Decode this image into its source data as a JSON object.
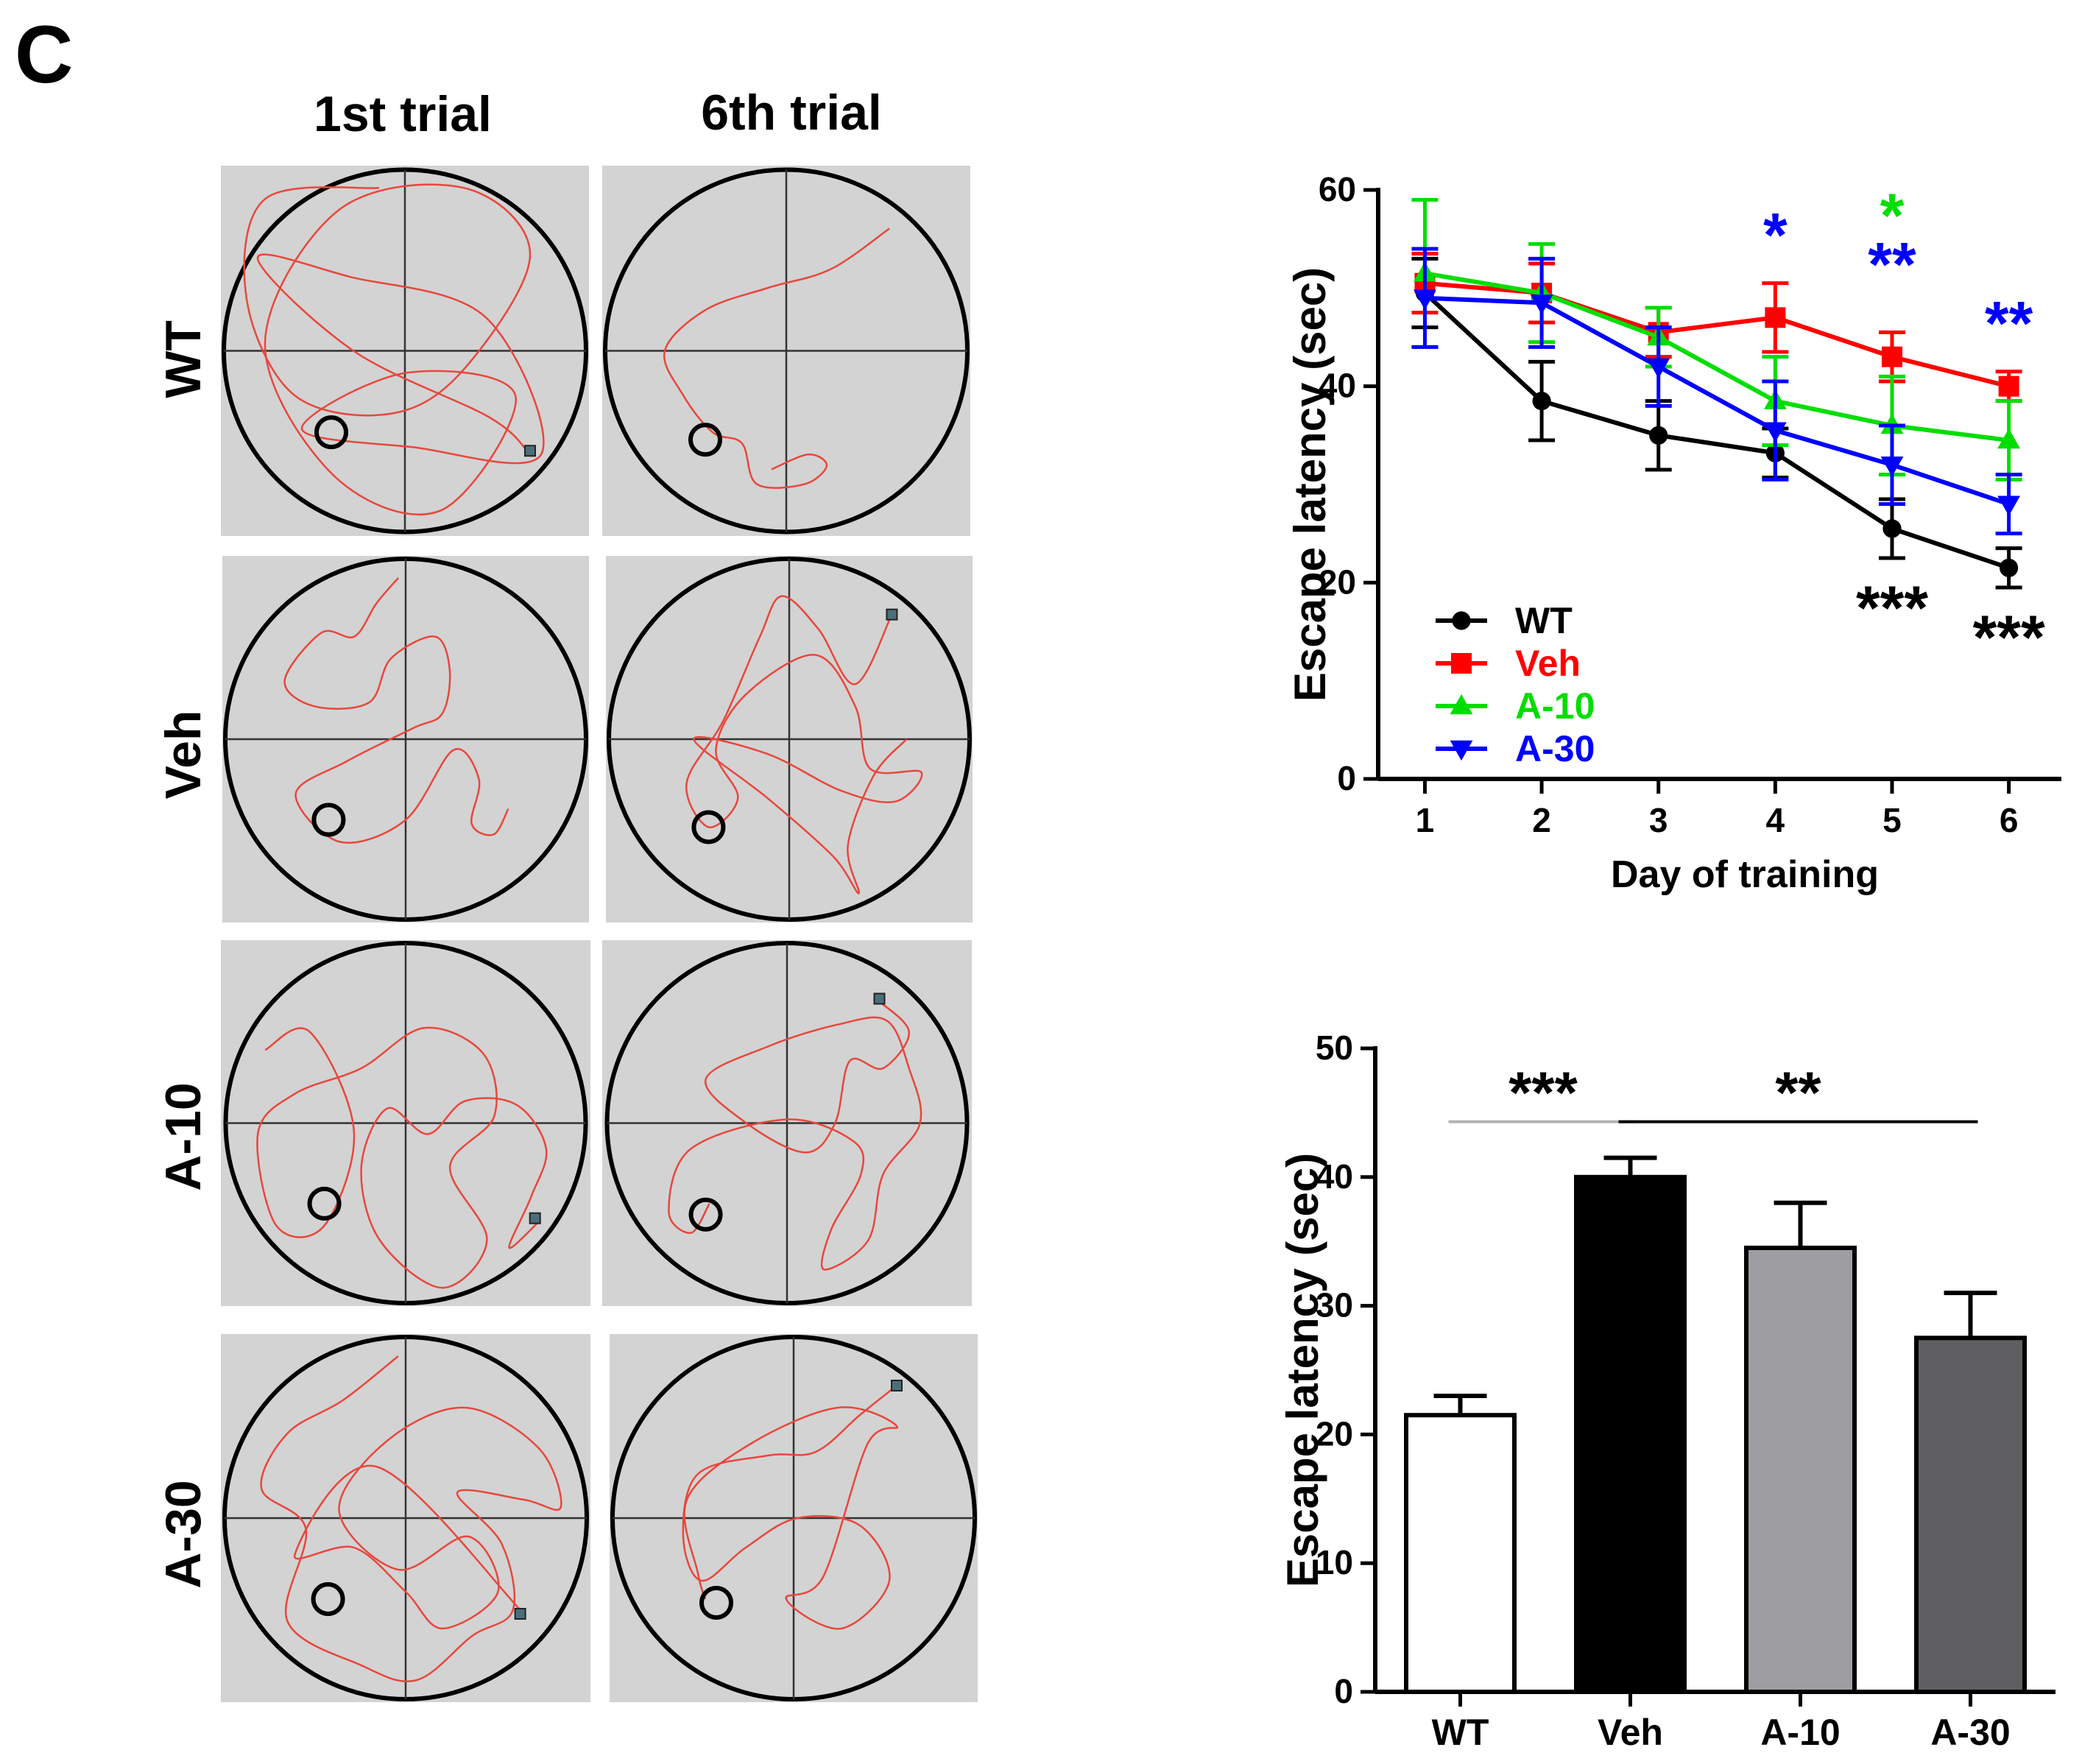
{
  "panel_label": "C",
  "trials": {
    "col_labels": [
      "1st trial",
      "6th trial"
    ],
    "row_labels": [
      "WT",
      "Veh",
      "A-10",
      "A-30"
    ],
    "colors": {
      "tank_bg": "#d3d3d3",
      "path": "#e8473d",
      "outline": "#000000",
      "marker": "#4a6f7a"
    }
  },
  "chart_data": [
    {
      "type": "line",
      "title": "",
      "xlabel": "Day of training",
      "ylabel": "Escape latency (sec)",
      "x": [
        1,
        2,
        3,
        4,
        5,
        6
      ],
      "xticks": [
        "1",
        "2",
        "3",
        "4",
        "5",
        "6"
      ],
      "yticks": [
        "0",
        "20",
        "40",
        "60"
      ],
      "ylim": [
        0,
        60
      ],
      "legend_position": "bottom-left",
      "series": [
        {
          "name": "WT",
          "color": "#000000",
          "marker": "circle",
          "values": [
            49.5,
            38.5,
            35,
            33.2,
            25.5,
            21.5
          ],
          "err": [
            3.5,
            4,
            3.5,
            2.5,
            3,
            2
          ]
        },
        {
          "name": "Veh",
          "color": "#ff0000",
          "marker": "square",
          "values": [
            50.5,
            49.5,
            45.5,
            47,
            43,
            40
          ],
          "err": [
            3,
            3,
            2.5,
            3.5,
            2.5,
            1.5
          ]
        },
        {
          "name": "A-10",
          "color": "#00dd00",
          "marker": "triangle-up",
          "values": [
            51.5,
            49.5,
            45,
            38.5,
            36,
            34.5
          ],
          "err": [
            7.5,
            5,
            3,
            4.5,
            5,
            4
          ]
        },
        {
          "name": "A-30",
          "color": "#0000ff",
          "marker": "triangle-down",
          "values": [
            49,
            48.5,
            42,
            35.5,
            32,
            28
          ],
          "err": [
            5,
            4.5,
            4,
            5,
            4,
            3
          ]
        }
      ],
      "annotations": [
        {
          "text": "*",
          "color": "#0000ff",
          "x": 4,
          "y": 55.5
        },
        {
          "text": "*",
          "color": "#00dd00",
          "x": 5,
          "y": 57.5
        },
        {
          "text": "**",
          "color": "#0000ff",
          "x": 5,
          "y": 52.5
        },
        {
          "text": "**",
          "color": "#0000ff",
          "x": 6,
          "y": 46.5
        },
        {
          "text": "***",
          "color": "#000000",
          "x": 5,
          "y": 17.5
        },
        {
          "text": "***",
          "color": "#000000",
          "x": 6,
          "y": 14.5
        }
      ]
    },
    {
      "type": "bar",
      "title": "",
      "xlabel": "",
      "ylabel": "Escape latency (sec)",
      "categories": [
        "WT",
        "Veh",
        "A-10",
        "A-30"
      ],
      "values": [
        21.5,
        40,
        34.5,
        27.5
      ],
      "err": [
        1.5,
        1.5,
        3.5,
        3.5
      ],
      "colors": [
        "#ffffff",
        "#000000",
        "#9e9ea2",
        "#5f5f61"
      ],
      "yticks": [
        "0",
        "10",
        "20",
        "30",
        "40",
        "50"
      ],
      "ylim": [
        0,
        50
      ],
      "significance": [
        {
          "text": "***",
          "from": "WT",
          "to": "Veh",
          "color": "#000000",
          "line_color": "#b3b3b3",
          "y": 44.3
        },
        {
          "text": "**",
          "from": "Veh",
          "to": "A-30",
          "color": "#000000",
          "line_color": "#000000",
          "y": 44.3
        }
      ]
    }
  ]
}
